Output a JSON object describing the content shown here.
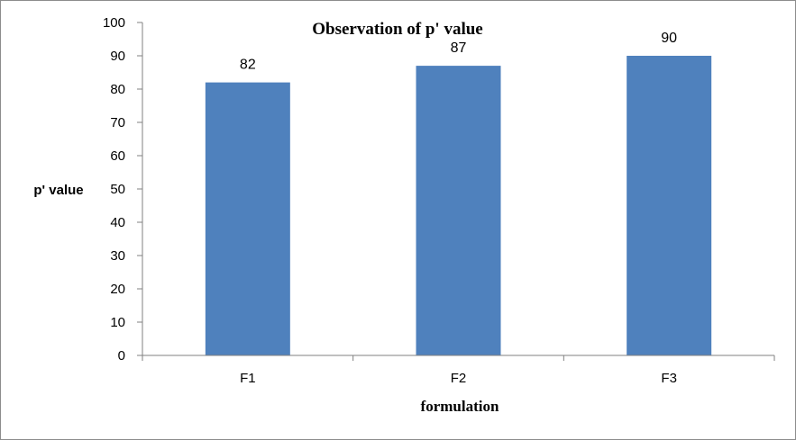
{
  "chart_data": {
    "type": "bar",
    "title": "Observation of p' value",
    "xlabel": "formulation",
    "ylabel": "p' value",
    "categories": [
      "F1",
      "F2",
      "F3"
    ],
    "series": [
      {
        "values": [
          82,
          87,
          90
        ],
        "color": "#4f81bd"
      }
    ],
    "data_labels": [
      "82",
      "87",
      "90"
    ],
    "ylim": [
      0,
      100
    ],
    "yticks": [
      0,
      10,
      20,
      30,
      40,
      50,
      60,
      70,
      80,
      90,
      100
    ],
    "grid": false,
    "legend": "none"
  }
}
